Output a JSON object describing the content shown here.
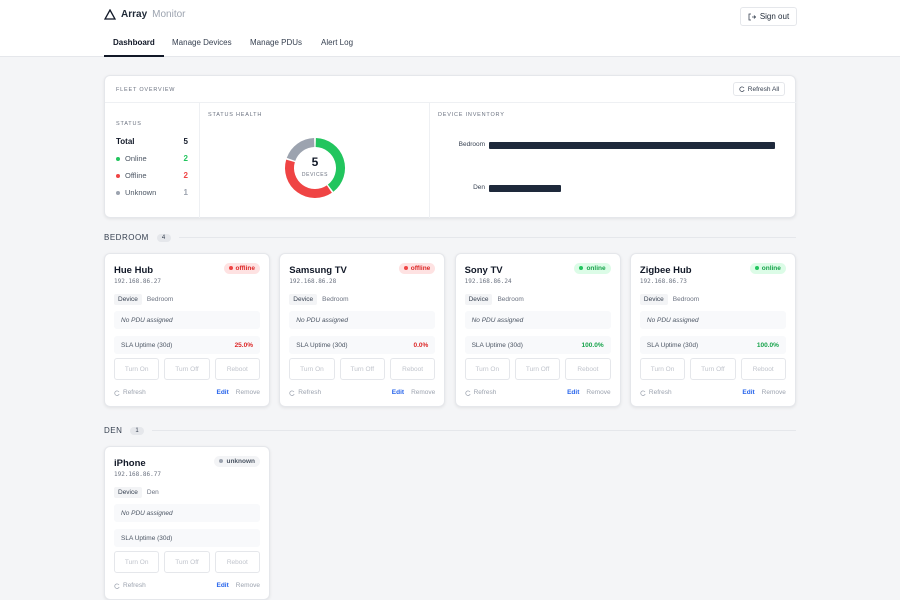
{
  "header": {
    "brand": "Array",
    "brand_suffix": "Monitor",
    "sign_out": "Sign out"
  },
  "nav": [
    "Dashboard",
    "Manage Devices",
    "Manage PDUs",
    "Alert Log"
  ],
  "overview": {
    "title": "FLEET OVERVIEW",
    "refresh": "Refresh All",
    "status": {
      "title": "STATUS",
      "total_label": "Total",
      "total": 5,
      "rows": [
        {
          "label": "Online",
          "value": 2,
          "color": "#22c55e"
        },
        {
          "label": "Offline",
          "value": 2,
          "color": "#ef4444"
        },
        {
          "label": "Unknown",
          "value": 1,
          "color": "#9ca3af"
        }
      ]
    },
    "health": {
      "title": "STATUS HEALTH",
      "center": 5,
      "center_label": "DEVICES"
    },
    "inventory": {
      "title": "DEVICE INVENTORY",
      "categories": [
        "Bedroom",
        "Den"
      ],
      "values": [
        4,
        1
      ],
      "color": "#1e293b"
    }
  },
  "groups": [
    {
      "name": "BEDROOM",
      "count": 4,
      "devices": [
        {
          "name": "Hue Hub",
          "ip": "192.168.86.27",
          "status": "offline",
          "type": "Device",
          "room": "Bedroom",
          "pdu": "No PDU assigned",
          "sla_label": "SLA Uptime (30d)",
          "sla": "25.0%",
          "actions": [
            "Turn On",
            "Turn Off",
            "Reboot"
          ],
          "refresh": "Refresh",
          "edit": "Edit",
          "remove": "Remove"
        },
        {
          "name": "Samsung TV",
          "ip": "192.168.86.28",
          "status": "offline",
          "type": "Device",
          "room": "Bedroom",
          "pdu": "No PDU assigned",
          "sla_label": "SLA Uptime (30d)",
          "sla": "0.0%",
          "actions": [
            "Turn On",
            "Turn Off",
            "Reboot"
          ],
          "refresh": "Refresh",
          "edit": "Edit",
          "remove": "Remove"
        },
        {
          "name": "Sony TV",
          "ip": "192.168.86.24",
          "status": "online",
          "type": "Device",
          "room": "Bedroom",
          "pdu": "No PDU assigned",
          "sla_label": "SLA Uptime (30d)",
          "sla": "100.0%",
          "actions": [
            "Turn On",
            "Turn Off",
            "Reboot"
          ],
          "refresh": "Refresh",
          "edit": "Edit",
          "remove": "Remove"
        },
        {
          "name": "Zigbee Hub",
          "ip": "192.168.86.73",
          "status": "online",
          "type": "Device",
          "room": "Bedroom",
          "pdu": "No PDU assigned",
          "sla_label": "SLA Uptime (30d)",
          "sla": "100.0%",
          "actions": [
            "Turn On",
            "Turn Off",
            "Reboot"
          ],
          "refresh": "Refresh",
          "edit": "Edit",
          "remove": "Remove"
        }
      ]
    },
    {
      "name": "DEN",
      "count": 1,
      "devices": [
        {
          "name": "iPhone",
          "ip": "192.168.86.77",
          "status": "unknown",
          "type": "Device",
          "room": "Den",
          "pdu": "No PDU assigned",
          "sla_label": "SLA Uptime (30d)",
          "sla": "",
          "actions": [
            "Turn On",
            "Turn Off",
            "Reboot"
          ],
          "refresh": "Refresh",
          "edit": "Edit",
          "remove": "Remove"
        }
      ]
    }
  ]
}
